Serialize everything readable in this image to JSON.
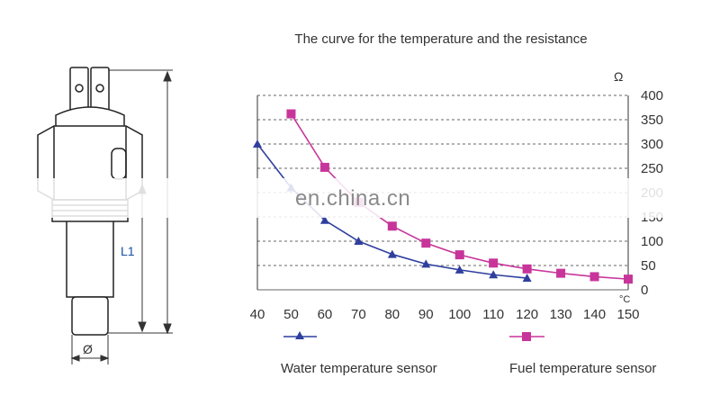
{
  "chart_data": {
    "type": "line",
    "title": "The curve for the temperature and the resistance",
    "xlabel": "°C",
    "ylabel": "Ω",
    "xlim": [
      40,
      150
    ],
    "ylim": [
      0,
      400
    ],
    "x_ticks": [
      40,
      50,
      60,
      70,
      80,
      90,
      100,
      110,
      120,
      130,
      140,
      150
    ],
    "y_ticks": [
      0,
      50,
      100,
      150,
      200,
      250,
      300,
      350,
      400
    ],
    "grid": "horizontal dashed",
    "legend_position": "bottom",
    "series": [
      {
        "name": "Water temperature sensor",
        "color": "#2f3f9e",
        "marker": "triangle",
        "x": [
          40,
          50,
          60,
          70,
          80,
          90,
          100,
          110,
          120
        ],
        "y": [
          300,
          210,
          143,
          100,
          73,
          53,
          41,
          31,
          24
        ]
      },
      {
        "name": "Fuel temperature sensor",
        "color": "#c8359a",
        "marker": "square",
        "x": [
          50,
          60,
          70,
          80,
          90,
          100,
          110,
          120,
          130,
          140,
          150
        ],
        "y": [
          362,
          252,
          180,
          131,
          96,
          72,
          55,
          43,
          34,
          27,
          22
        ]
      }
    ]
  },
  "diagram": {
    "length_label": "L1",
    "diameter_label": "Ø"
  },
  "watermark": "en.china.cn"
}
